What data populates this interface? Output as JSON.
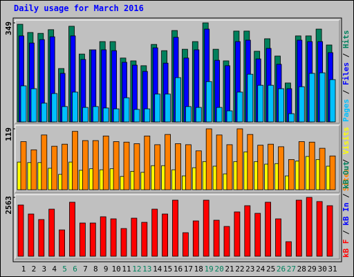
{
  "chart_data": [
    {
      "type": "bar",
      "title": "Daily usage for March 2016",
      "ylim": [
        0,
        349
      ],
      "yticks": [
        349
      ],
      "series": [
        {
          "color": "#00805c",
          "values": [
            344,
            315,
            312,
            325,
            188,
            337,
            239,
            254,
            283,
            283,
            225,
            215,
            198,
            273,
            251,
            322,
            256,
            283,
            349,
            256,
            215,
            320,
            320,
            249,
            293,
            232,
            137,
            303,
            303,
            327,
            271
          ]
        },
        {
          "color": "#0000ff",
          "values": [
            303,
            278,
            290,
            300,
            171,
            303,
            220,
            254,
            254,
            251,
            210,
            200,
            178,
            261,
            207,
            298,
            225,
            254,
            327,
            217,
            198,
            283,
            288,
            222,
            259,
            203,
            117,
            288,
            283,
            283,
            244
          ]
        },
        {
          "color": "#00c0ff",
          "values": [
            127,
            117,
            66,
            100,
            54,
            105,
            51,
            54,
            49,
            46,
            85,
            44,
            46,
            98,
            98,
            156,
            54,
            51,
            142,
            51,
            39,
            105,
            168,
            129,
            129,
            117,
            29,
            124,
            171,
            173,
            149
          ]
        }
      ],
      "legend": [
        {
          "name": "Pages",
          "color": "#00c0ff"
        },
        {
          "name": "Files",
          "color": "#0000ff"
        },
        {
          "name": "Hits",
          "color": "#00805c"
        }
      ],
      "legend_separator": " / "
    },
    {
      "type": "bar",
      "ylim": [
        0,
        119
      ],
      "yticks": [
        119
      ],
      "series": [
        {
          "color": "#ffff00",
          "values": [
            54,
            53,
            53,
            42,
            30,
            54,
            38,
            41,
            39,
            41,
            26,
            36,
            34,
            47,
            47,
            39,
            27,
            43,
            55,
            46,
            31,
            55,
            74,
            55,
            50,
            51,
            27,
            56,
            65,
            59,
            46
          ]
        },
        {
          "color": "#ff8000",
          "values": [
            94,
            78,
            107,
            85,
            89,
            114,
            96,
            96,
            105,
            94,
            93,
            90,
            105,
            88,
            108,
            90,
            88,
            76,
            119,
            107,
            88,
            119,
            108,
            87,
            89,
            84,
            59,
            94,
            93,
            81,
            66
          ]
        }
      ],
      "legend": [
        {
          "name": "Sites",
          "color": "#ff8000"
        },
        {
          "name": "Visits",
          "color": "#ffff00"
        }
      ],
      "legend_separator": " / "
    },
    {
      "type": "bar",
      "ylim": [
        0,
        2563
      ],
      "yticks": [
        2563
      ],
      "series": [
        {
          "color": "#ff0000",
          "values": [
            2231,
            1839,
            1598,
            2050,
            1146,
            2352,
            1447,
            1447,
            1719,
            1628,
            1206,
            1658,
            1477,
            2050,
            1839,
            2442,
            1025,
            1538,
            2442,
            1568,
            1297,
            1930,
            2201,
            1869,
            2352,
            1628,
            633,
            2442,
            2563,
            2382,
            2201
          ]
        }
      ],
      "legend": [
        {
          "name": "kB F",
          "color": "#ff0000"
        },
        {
          "name": "kB In",
          "color": "#0000ff"
        },
        {
          "name": "kB Out",
          "color": "#00805c"
        }
      ],
      "legend_separator": " / ",
      "categories": [
        "1",
        "2",
        "3",
        "4",
        "5",
        "6",
        "7",
        "8",
        "9",
        "10",
        "11",
        "12",
        "13",
        "14",
        "15",
        "16",
        "17",
        "18",
        "19",
        "20",
        "21",
        "22",
        "23",
        "24",
        "25",
        "26",
        "27",
        "28",
        "29",
        "30",
        "31"
      ],
      "category_colors": [
        "#000000",
        "#000000",
        "#000000",
        "#000000",
        "#00805c",
        "#00805c",
        "#000000",
        "#000000",
        "#000000",
        "#000000",
        "#000000",
        "#00805c",
        "#00805c",
        "#000000",
        "#000000",
        "#000000",
        "#000000",
        "#000000",
        "#00805c",
        "#00805c",
        "#000000",
        "#000000",
        "#000000",
        "#000000",
        "#000000",
        "#00805c",
        "#00805c",
        "#000000",
        "#000000",
        "#000000",
        "#000000"
      ]
    }
  ]
}
